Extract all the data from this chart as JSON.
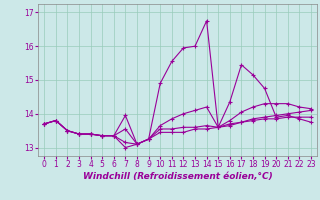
{
  "title": "",
  "xlabel": "Windchill (Refroidissement éolien,°C)",
  "xlim": [
    -0.5,
    23.5
  ],
  "ylim": [
    12.75,
    17.25
  ],
  "yticks": [
    13,
    14,
    15,
    16,
    17
  ],
  "xticks": [
    0,
    1,
    2,
    3,
    4,
    5,
    6,
    7,
    8,
    9,
    10,
    11,
    12,
    13,
    14,
    15,
    16,
    17,
    18,
    19,
    20,
    21,
    22,
    23
  ],
  "bg_color": "#cce8e8",
  "grid_color": "#99ccbb",
  "line_color": "#990099",
  "series": [
    [
      13.7,
      13.8,
      13.5,
      13.4,
      13.4,
      13.35,
      13.35,
      13.95,
      13.1,
      13.25,
      14.9,
      15.55,
      15.95,
      16.0,
      16.75,
      13.6,
      14.35,
      15.45,
      15.15,
      14.75,
      13.9,
      13.95,
      13.85,
      13.75
    ],
    [
      13.7,
      13.8,
      13.5,
      13.4,
      13.4,
      13.35,
      13.35,
      13.0,
      13.1,
      13.25,
      13.45,
      13.45,
      13.45,
      13.55,
      13.55,
      13.6,
      13.65,
      13.75,
      13.85,
      13.9,
      13.95,
      14.0,
      14.05,
      14.1
    ],
    [
      13.7,
      13.8,
      13.5,
      13.4,
      13.4,
      13.35,
      13.35,
      13.55,
      13.1,
      13.25,
      13.65,
      13.85,
      14.0,
      14.1,
      14.2,
      13.6,
      13.8,
      14.05,
      14.2,
      14.3,
      14.3,
      14.3,
      14.2,
      14.15
    ],
    [
      13.7,
      13.8,
      13.5,
      13.4,
      13.4,
      13.35,
      13.35,
      13.15,
      13.1,
      13.25,
      13.55,
      13.55,
      13.6,
      13.6,
      13.65,
      13.6,
      13.7,
      13.75,
      13.8,
      13.85,
      13.85,
      13.9,
      13.9,
      13.9
    ]
  ],
  "marker": "+",
  "markersize": 3,
  "linewidth": 0.8,
  "xlabel_fontsize": 6.5,
  "tick_fontsize": 5.5
}
